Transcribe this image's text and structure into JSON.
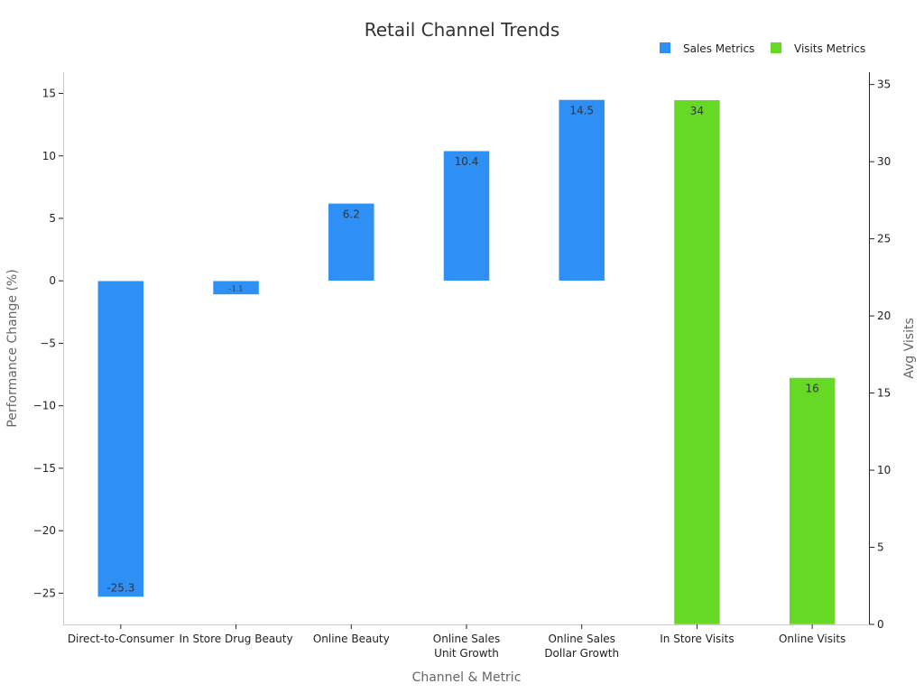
{
  "chart_data": {
    "type": "bar",
    "title": "Retail Channel Trends",
    "xlabel": "Channel & Metric",
    "ylabel": "Performance Change (%)",
    "y2label": "Avg Visits",
    "categories": [
      "Direct-to-Consumer",
      "In Store Drug Beauty",
      [
        "Online Beauty"
      ],
      [
        "Online Sales",
        "Unit Growth"
      ],
      [
        "Online Sales",
        "Dollar Growth"
      ],
      [
        "In Store Visits"
      ],
      [
        "Online Visits"
      ]
    ],
    "series": [
      {
        "name": "Sales Metrics",
        "axis": "left",
        "color": "#2e90f5",
        "values": [
          -25.3,
          -1.1,
          6.2,
          10.4,
          14.5,
          null,
          null
        ],
        "labels": [
          "-25.3",
          "-1.1",
          "6.2",
          "10.4",
          "14.5",
          "",
          ""
        ]
      },
      {
        "name": "Visits Metrics",
        "axis": "right",
        "color": "#66d925",
        "values": [
          null,
          null,
          null,
          null,
          null,
          34,
          16
        ],
        "labels": [
          "",
          "",
          "",
          "",
          "",
          "34",
          "16"
        ]
      }
    ],
    "ylim": [
      -27.5,
      16.7
    ],
    "y2lim": [
      0,
      35.8
    ],
    "yticks": [
      15,
      10,
      5,
      0,
      -5,
      -10,
      -15,
      -20,
      -25
    ],
    "yticklabels": [
      "15",
      "10",
      "5",
      "0",
      "−5",
      "−10",
      "−15",
      "−20",
      "−25"
    ],
    "y2ticks": [
      35,
      30,
      25,
      20,
      15,
      10,
      5,
      0
    ],
    "y2ticklabels": [
      "35",
      "30",
      "25",
      "20",
      "15",
      "10",
      "5",
      "0"
    ],
    "legend": "top-right",
    "grid": false
  }
}
